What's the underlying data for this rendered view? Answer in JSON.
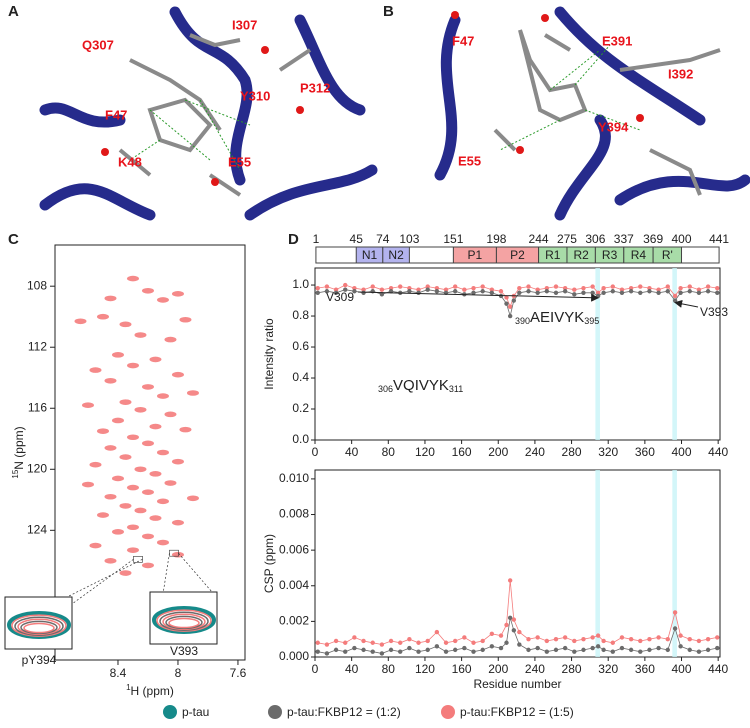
{
  "structure_panels": [
    {
      "label": "A",
      "residues": [
        "Q307",
        "I307",
        "Y310",
        "P312",
        "F47",
        "K48",
        "E55"
      ]
    },
    {
      "label": "B",
      "residues": [
        "F47",
        "E391",
        "I392",
        "Y394",
        "E55"
      ]
    }
  ],
  "domain_map": {
    "boundaries": [
      1,
      45,
      74,
      103,
      151,
      198,
      244,
      275,
      306,
      337,
      369,
      400,
      441
    ],
    "segments": [
      {
        "label": "N1",
        "start": 45,
        "end": 74,
        "color": "#b3b3ee"
      },
      {
        "label": "N2",
        "start": 74,
        "end": 103,
        "color": "#b3b3ee"
      },
      {
        "label": "P1",
        "start": 151,
        "end": 198,
        "color": "#f4a3a3"
      },
      {
        "label": "P2",
        "start": 198,
        "end": 244,
        "color": "#f4a3a3"
      },
      {
        "label": "R1",
        "start": 244,
        "end": 275,
        "color": "#a8dca8"
      },
      {
        "label": "R2",
        "start": 275,
        "end": 306,
        "color": "#a8dca8"
      },
      {
        "label": "R3",
        "start": 306,
        "end": 337,
        "color": "#a8dca8"
      },
      {
        "label": "R4",
        "start": 337,
        "end": 369,
        "color": "#a8dca8"
      },
      {
        "label": "R'",
        "start": 369,
        "end": 400,
        "color": "#a8dca8"
      }
    ]
  },
  "legend": [
    {
      "name": "p-tau",
      "color": "#168a8a"
    },
    {
      "name": "p-tau:FKBP12 = (1:2)",
      "color": "#6b6b6b"
    },
    {
      "name": "p-tau:FKBP12 = (1:5)",
      "color": "#f47c7c"
    }
  ],
  "chart_data": [
    {
      "type": "scatter",
      "panel": "C",
      "xlabel": {
        "sup": "1",
        "text": "H (ppm)"
      },
      "ylabel": {
        "sup": "15",
        "text": "N (ppm)"
      },
      "xlim": [
        8.82,
        7.553
      ],
      "ylim": [
        132.5,
        105.3
      ],
      "xticks": [
        8.4,
        8.0,
        7.6
      ],
      "yticks": [
        108,
        112,
        116,
        120,
        124
      ],
      "insets": [
        {
          "label": "pY394"
        },
        {
          "label": "V393"
        }
      ],
      "series": [
        {
          "name": "p-tau:FKBP12 = (1:5)",
          "color": "#f47c7c",
          "x": [
            8.3,
            8.2,
            8.45,
            8.1,
            8.0,
            8.5,
            8.35,
            8.65,
            8.25,
            8.05,
            7.95,
            8.4,
            8.3,
            8.15,
            8.55,
            8.0,
            8.45,
            8.2,
            8.1,
            8.35,
            7.9,
            8.6,
            8.25,
            8.05,
            8.4,
            8.15,
            8.5,
            8.3,
            7.95,
            8.2,
            8.45,
            8.1,
            8.35,
            8.0,
            8.55,
            8.25,
            8.15,
            8.4,
            8.05,
            8.3,
            8.6,
            8.2,
            8.45,
            8.1,
            7.9,
            8.35,
            8.25,
            8.5,
            8.15,
            8.0,
            8.3,
            8.4,
            8.2,
            8.1,
            8.55,
            8.3,
            8.0,
            8.45,
            8.2,
            8.35
          ],
          "y": [
            107.5,
            108.3,
            108.8,
            108.9,
            108.5,
            110,
            110.5,
            110.3,
            111.2,
            111.5,
            110.2,
            112.5,
            113.2,
            112.8,
            113.5,
            113.8,
            114.2,
            114.6,
            115.2,
            115.6,
            115,
            115.8,
            116.1,
            116.4,
            116.8,
            117.2,
            117.5,
            117.9,
            117.4,
            118.3,
            118.6,
            118.9,
            119.2,
            119.5,
            119.7,
            120,
            120.3,
            120.6,
            120.9,
            121.2,
            121,
            121.5,
            121.8,
            122.1,
            121.9,
            122.4,
            122.7,
            123,
            123.2,
            123.5,
            123.8,
            124.1,
            124.4,
            124.8,
            125,
            125.3,
            125.6,
            126,
            126.3,
            126.8
          ]
        }
      ]
    },
    {
      "type": "line",
      "panel": "D",
      "ylabel": "Intensity ratio",
      "xlim": [
        0,
        442
      ],
      "ylim": [
        0,
        1.11
      ],
      "xticks": [
        0,
        40,
        80,
        120,
        160,
        200,
        240,
        280,
        320,
        360,
        400,
        440
      ],
      "yticks": [
        {
          "value": 0,
          "label": "0.0"
        },
        0.2,
        0.4,
        0.6,
        0.8,
        {
          "value": 1,
          "label": "1.0"
        }
      ],
      "point_labels": [
        {
          "label": "V309",
          "x": 309
        },
        {
          "label": "V393",
          "x": 393
        }
      ],
      "regions": [
        {
          "start": 306,
          "text": "VQIVYK",
          "end": 311
        },
        {
          "start": 390,
          "text": "AEIVYK",
          "end": 395
        }
      ],
      "x": [
        3,
        13,
        23,
        33,
        43,
        53,
        63,
        73,
        83,
        93,
        103,
        113,
        123,
        133,
        143,
        153,
        163,
        173,
        183,
        193,
        203,
        209,
        213,
        217,
        223,
        233,
        243,
        253,
        263,
        273,
        283,
        293,
        303,
        309,
        315,
        325,
        335,
        345,
        355,
        365,
        375,
        385,
        393,
        399,
        409,
        419,
        429,
        439
      ],
      "series": [
        {
          "name": "p-tau:FKBP12 = (1:5)",
          "color": "#f47c7c",
          "values": [
            0.98,
            0.99,
            0.97,
            1.0,
            0.98,
            0.97,
            0.99,
            0.97,
            0.98,
            0.99,
            0.98,
            0.97,
            0.99,
            0.98,
            0.97,
            0.99,
            0.97,
            0.98,
            0.99,
            0.97,
            0.96,
            0.92,
            0.86,
            0.93,
            0.98,
            0.99,
            0.97,
            0.98,
            0.99,
            0.98,
            0.97,
            0.98,
            0.99,
            0.95,
            0.98,
            0.99,
            0.97,
            0.98,
            0.99,
            0.98,
            0.97,
            0.99,
            0.93,
            0.98,
            0.99,
            0.97,
            0.99,
            0.98
          ]
        },
        {
          "name": "p-tau:FKBP12 = (1:2)",
          "color": "#6b6b6b",
          "values": [
            0.95,
            0.96,
            0.95,
            0.97,
            0.96,
            0.95,
            0.96,
            0.94,
            0.96,
            0.95,
            0.96,
            0.95,
            0.97,
            0.96,
            0.95,
            0.96,
            0.94,
            0.95,
            0.96,
            0.95,
            0.93,
            0.88,
            0.8,
            0.9,
            0.95,
            0.96,
            0.95,
            0.96,
            0.95,
            0.96,
            0.94,
            0.95,
            0.95,
            0.93,
            0.95,
            0.96,
            0.95,
            0.96,
            0.95,
            0.96,
            0.95,
            0.96,
            0.9,
            0.95,
            0.96,
            0.95,
            0.96,
            0.95
          ]
        }
      ]
    },
    {
      "type": "line",
      "panel": "D",
      "ylabel": "CSP (ppm)",
      "xlabel": "Residue number",
      "xlim": [
        0,
        442
      ],
      "ylim": [
        0,
        0.0105
      ],
      "xticks": [
        0,
        40,
        80,
        120,
        160,
        200,
        240,
        280,
        320,
        360,
        400,
        440
      ],
      "yticks": [
        {
          "value": 0,
          "label": "0.000"
        },
        0.002,
        0.004,
        0.006,
        0.008,
        {
          "value": 0.01,
          "label": "0.010"
        }
      ],
      "x": [
        3,
        13,
        23,
        33,
        43,
        53,
        63,
        73,
        83,
        93,
        103,
        113,
        123,
        133,
        143,
        153,
        163,
        173,
        183,
        193,
        203,
        209,
        213,
        217,
        223,
        233,
        243,
        253,
        263,
        273,
        283,
        293,
        303,
        309,
        315,
        325,
        335,
        345,
        355,
        365,
        375,
        385,
        393,
        399,
        409,
        419,
        429,
        439
      ],
      "series": [
        {
          "name": "p-tau:FKBP12 = (1:5)",
          "color": "#f47c7c",
          "values": [
            0.0008,
            0.0007,
            0.0009,
            0.0008,
            0.0011,
            0.0009,
            0.0008,
            0.0007,
            0.0009,
            0.0008,
            0.001,
            0.0008,
            0.0009,
            0.0014,
            0.0008,
            0.0009,
            0.0011,
            0.0008,
            0.0009,
            0.0013,
            0.0012,
            0.0018,
            0.0043,
            0.0021,
            0.0014,
            0.001,
            0.0011,
            0.0009,
            0.001,
            0.0011,
            0.0009,
            0.001,
            0.0011,
            0.0012,
            0.0009,
            0.0008,
            0.0011,
            0.001,
            0.0009,
            0.001,
            0.0011,
            0.001,
            0.0025,
            0.0012,
            0.001,
            0.0009,
            0.001,
            0.0011
          ]
        },
        {
          "name": "p-tau:FKBP12 = (1:2)",
          "color": "#6b6b6b",
          "values": [
            0.0003,
            0.0002,
            0.0004,
            0.0003,
            0.0005,
            0.0004,
            0.0003,
            0.0002,
            0.0004,
            0.0003,
            0.0005,
            0.0003,
            0.0004,
            0.0006,
            0.0003,
            0.0004,
            0.0005,
            0.0003,
            0.0004,
            0.0006,
            0.0005,
            0.0008,
            0.0022,
            0.0015,
            0.0007,
            0.0004,
            0.0005,
            0.0003,
            0.0004,
            0.0005,
            0.0003,
            0.0004,
            0.0005,
            0.0006,
            0.0004,
            0.0003,
            0.0005,
            0.0004,
            0.0003,
            0.0004,
            0.0005,
            0.0004,
            0.0016,
            0.0006,
            0.0004,
            0.0003,
            0.0004,
            0.0005
          ]
        }
      ]
    }
  ]
}
